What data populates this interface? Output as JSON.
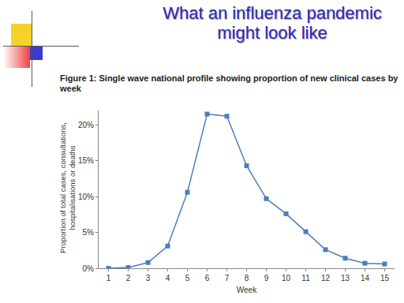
{
  "chart_data": {
    "type": "line",
    "title": "What an influenza pandemic might look like",
    "subtitle": "Figure 1: Single wave national profile showing proportion of new clinical cases by week",
    "x_label": "Week",
    "y_label": "Proportion of total cases, consultations, hospitalisations or deaths",
    "x": [
      1,
      2,
      3,
      4,
      5,
      6,
      7,
      8,
      9,
      10,
      11,
      12,
      13,
      14,
      15
    ],
    "values": [
      0,
      0.1,
      0.8,
      3.1,
      10.6,
      21.5,
      21.2,
      14.3,
      9.7,
      7.6,
      5.1,
      2.6,
      1.4,
      0.7,
      0.6
    ],
    "color": "#4a7ebb",
    "marker": "square",
    "xlim": [
      0.5,
      15.5
    ],
    "xticks": [
      1,
      2,
      3,
      4,
      5,
      6,
      7,
      8,
      9,
      10,
      11,
      12,
      13,
      14,
      15
    ],
    "ylim": [
      0,
      22
    ],
    "yticks": [
      {
        "value": 0,
        "label": "0%"
      },
      {
        "value": 5,
        "label": "5%"
      },
      {
        "value": 10,
        "label": "10%"
      },
      {
        "value": 15,
        "label": "15%"
      },
      {
        "value": 20,
        "label": "20%"
      }
    ],
    "grid": false
  }
}
